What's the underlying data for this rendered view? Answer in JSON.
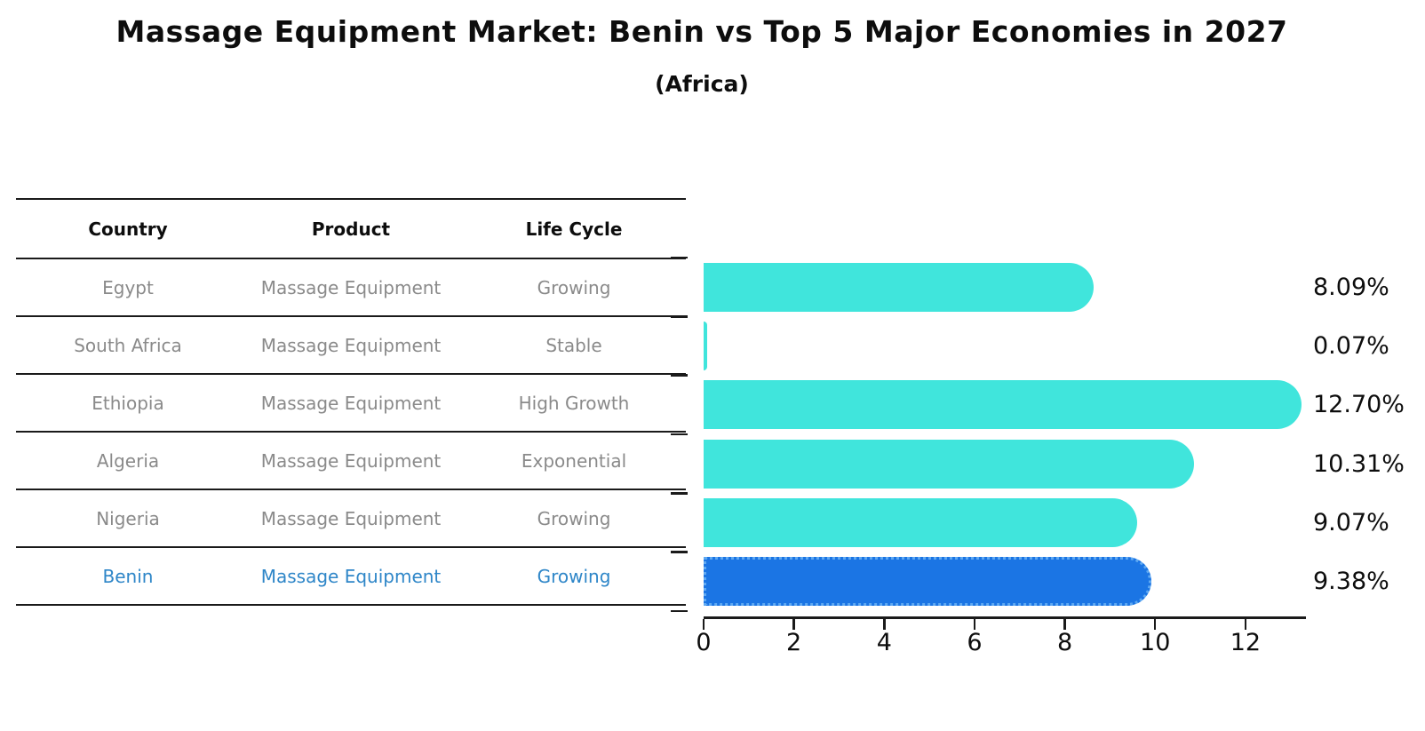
{
  "title": "Massage Equipment Market: Benin vs Top 5 Major Economies in 2027",
  "subtitle": "(Africa)",
  "table": {
    "headers": [
      "Country",
      "Product",
      "Life Cycle"
    ],
    "rows": [
      {
        "country": "Egypt",
        "product": "Massage Equipment",
        "life_cycle": "Growing",
        "highlight": false
      },
      {
        "country": "South Africa",
        "product": "Massage Equipment",
        "life_cycle": "Stable",
        "highlight": false
      },
      {
        "country": "Ethiopia",
        "product": "Massage Equipment",
        "life_cycle": "High Growth",
        "highlight": false
      },
      {
        "country": "Algeria",
        "product": "Massage Equipment",
        "life_cycle": "Exponential",
        "highlight": false
      },
      {
        "country": "Nigeria",
        "product": "Massage Equipment",
        "life_cycle": "Growing",
        "highlight": true
      }
    ],
    "highlight_row": {
      "country": "Benin",
      "product": "Massage Equipment",
      "life_cycle": "Growing"
    }
  },
  "chart_data": {
    "type": "bar",
    "orientation": "horizontal",
    "title": "Massage Equipment Market: Benin vs Top 5 Major Economies in 2027 (Africa)",
    "categories": [
      "Egypt",
      "South Africa",
      "Ethiopia",
      "Algeria",
      "Nigeria",
      "Benin"
    ],
    "values": [
      8.09,
      0.07,
      12.7,
      10.31,
      9.07,
      9.38
    ],
    "value_labels": [
      "8.09%",
      "0.07%",
      "12.70%",
      "10.31%",
      "9.07%",
      "9.38%"
    ],
    "x_ticks": [
      0,
      2,
      4,
      6,
      8,
      10,
      12
    ],
    "xlim": [
      0,
      13.34
    ],
    "grid": false,
    "legend": false,
    "highlight_index": 5
  },
  "colors": {
    "bar": "#40E5DC",
    "highlight_bar": "#1B75E4",
    "highlight_border": "#5FA9F2",
    "highlight_text": "#2e86c8",
    "text": "#0d0d0d",
    "muted_text": "#8a8a8a"
  }
}
